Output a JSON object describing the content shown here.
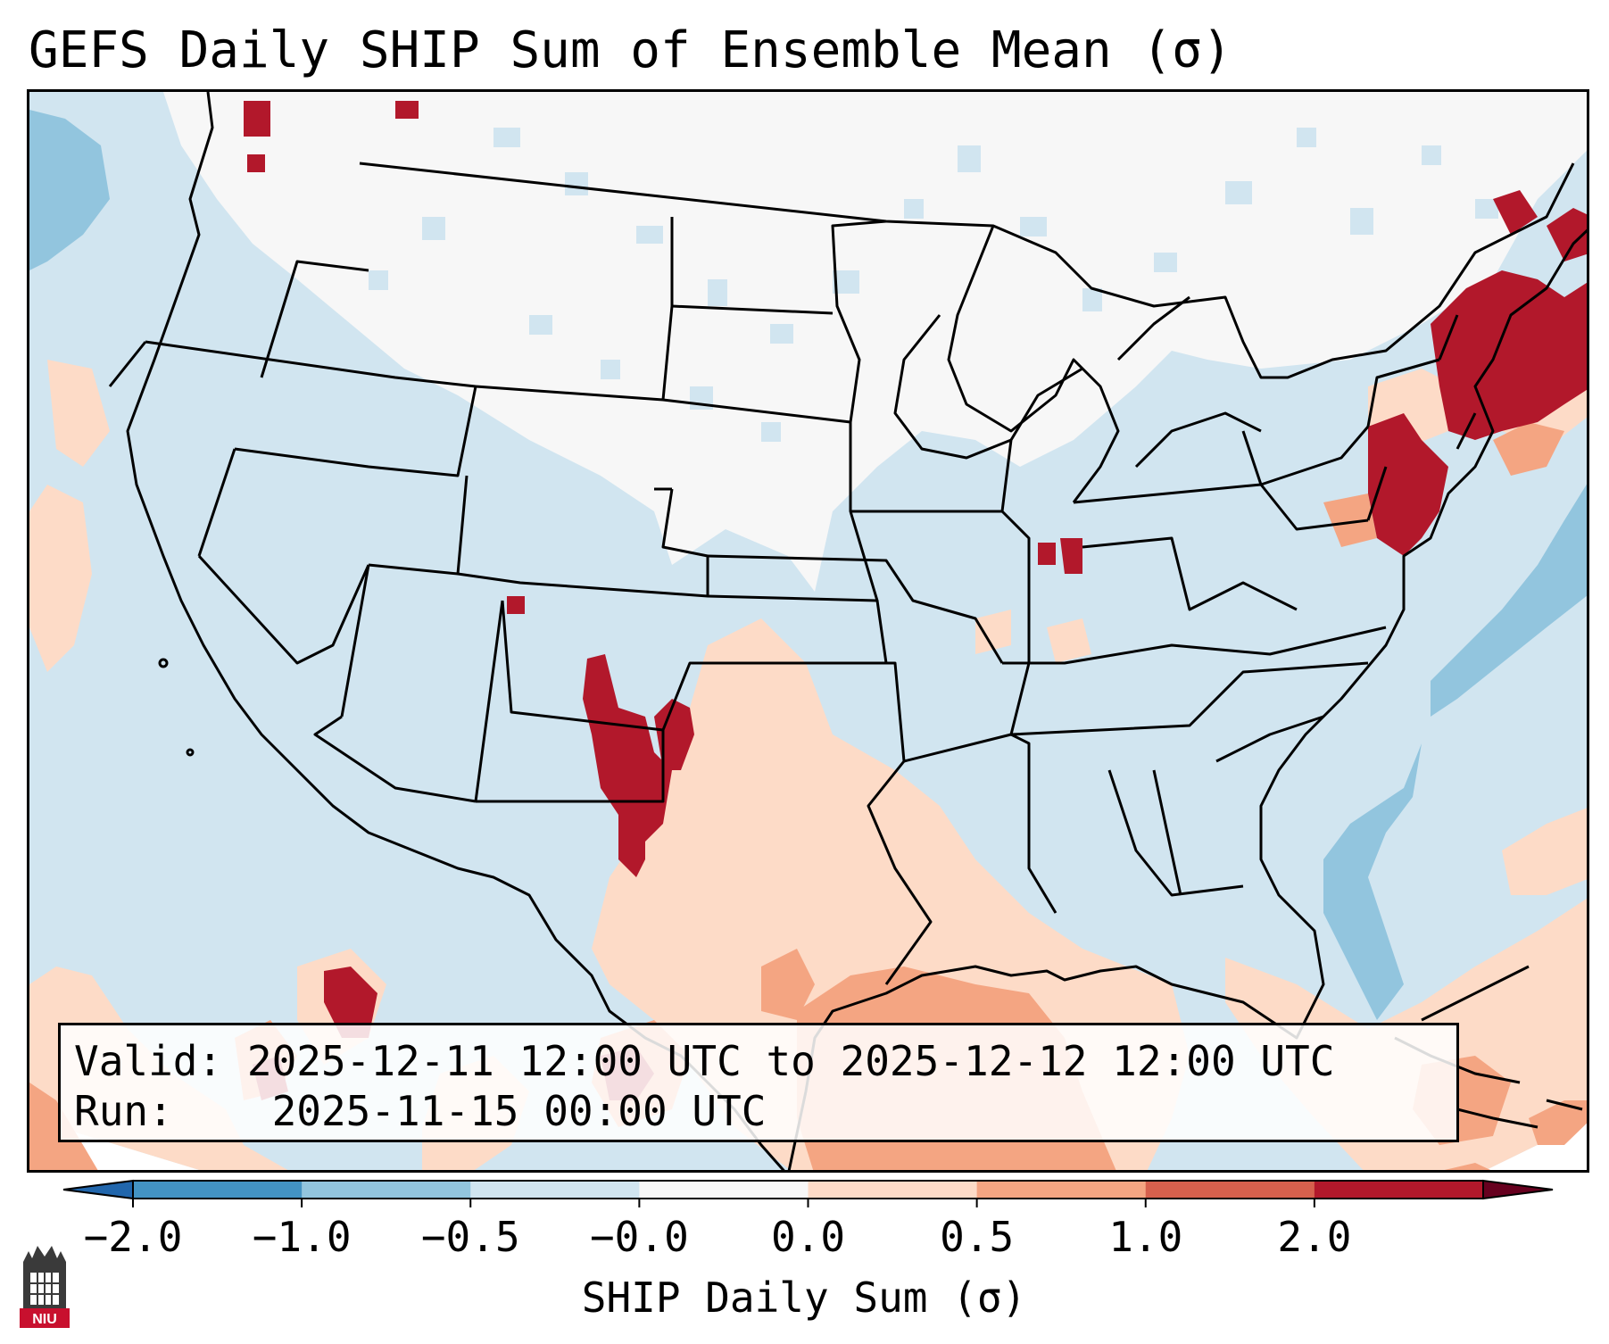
{
  "title": "GEFS Daily SHIP Sum of Ensemble Mean (σ)",
  "info": {
    "valid_label": "Valid:",
    "valid_value": "2025-12-11 12:00 UTC to 2025-12-12 12:00 UTC",
    "run_label": "Run:",
    "run_value": "2025-11-15 00:00 UTC"
  },
  "colorbar": {
    "label": "SHIP Daily Sum (σ)",
    "ticks": [
      "−2.0",
      "−1.0",
      "−0.5",
      "−0.0",
      "0.0",
      "0.5",
      "1.0",
      "2.0"
    ],
    "colors": [
      "#4393c3",
      "#92c5de",
      "#d1e5f0",
      "#f7f7f7",
      "#fddbc7",
      "#f4a582",
      "#d6604d",
      "#b2182b"
    ],
    "under_color": "#2166ac",
    "over_color": "#67001f"
  },
  "map": {
    "background_color": "#d1e5f0",
    "border_color": "#000000",
    "region": "Contiguous United States"
  },
  "logo": {
    "text": "NIU",
    "color": "#c8102e"
  }
}
